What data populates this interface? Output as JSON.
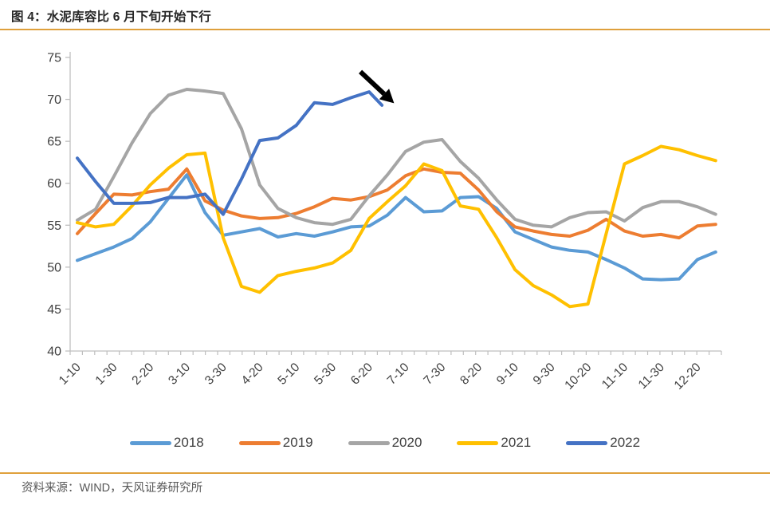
{
  "header": {
    "title": "图 4：水泥库容比 6 月下旬开始下行"
  },
  "footer": {
    "source": "资料来源：WIND，天风证券研究所"
  },
  "colors": {
    "rule": "#DFA03C",
    "axis": "#BFBFBF",
    "tick_label": "#404040",
    "title_text": "#262626",
    "source_text": "#595959",
    "annotation_arrow": "#000000"
  },
  "chart_data": {
    "type": "line",
    "title": "水泥库容比 (%)",
    "x_labels": [
      "1-10",
      "1-30",
      "2-20",
      "3-10",
      "3-30",
      "4-20",
      "5-10",
      "5-30",
      "6-20",
      "7-10",
      "7-30",
      "8-20",
      "9-10",
      "9-30",
      "10-20",
      "11-10",
      "11-30",
      "12-20"
    ],
    "x_step_per_point": 0.5,
    "y_ticks": [
      40,
      45,
      50,
      55,
      60,
      65,
      70,
      75
    ],
    "ylim": [
      40,
      75
    ],
    "grid": false,
    "legend_position": "bottom",
    "series": [
      {
        "name": "2018",
        "color": "#5B9BD5",
        "values": [
          50.8,
          51.6,
          52.4,
          53.4,
          55.4,
          58.2,
          61.0,
          56.5,
          53.8,
          54.2,
          54.6,
          53.6,
          54.0,
          53.7,
          54.2,
          54.8,
          54.9,
          56.2,
          58.3,
          56.6,
          56.7,
          58.3,
          58.4,
          57.0,
          54.2,
          53.3,
          52.4,
          52.0,
          51.8,
          50.9,
          49.9,
          48.6,
          48.5,
          48.6,
          50.9,
          51.8
        ]
      },
      {
        "name": "2019",
        "color": "#ED7D31",
        "values": [
          54.0,
          56.4,
          58.7,
          58.6,
          59.0,
          59.3,
          61.7,
          57.9,
          56.8,
          56.1,
          55.8,
          55.9,
          56.4,
          57.2,
          58.2,
          58.0,
          58.4,
          59.2,
          60.9,
          61.7,
          61.3,
          61.2,
          59.2,
          56.6,
          54.8,
          54.3,
          53.9,
          53.7,
          54.4,
          55.7,
          54.3,
          53.7,
          53.9,
          53.5,
          54.9,
          55.1
        ]
      },
      {
        "name": "2020",
        "color": "#A5A5A5",
        "values": [
          55.6,
          56.9,
          60.8,
          64.8,
          68.3,
          70.5,
          71.2,
          71.0,
          70.7,
          66.5,
          59.8,
          57.0,
          55.9,
          55.3,
          55.1,
          55.7,
          58.5,
          61.0,
          63.8,
          64.9,
          65.2,
          62.6,
          60.6,
          58.0,
          55.7,
          55.0,
          54.8,
          55.9,
          56.5,
          56.6,
          55.5,
          57.1,
          57.8,
          57.8,
          57.2,
          56.3
        ]
      },
      {
        "name": "2021",
        "color": "#FFC000",
        "values": [
          55.3,
          54.8,
          55.1,
          57.3,
          59.8,
          61.8,
          63.4,
          63.6,
          53.5,
          47.7,
          47.0,
          49.0,
          49.5,
          49.9,
          50.5,
          52.0,
          55.8,
          57.8,
          59.7,
          62.3,
          61.5,
          57.3,
          56.9,
          53.5,
          49.7,
          47.8,
          46.7,
          45.3,
          45.6,
          54.0,
          62.3,
          63.3,
          64.4,
          64.0,
          63.3,
          62.7
        ]
      },
      {
        "name": "2022",
        "color": "#4472C4",
        "x": [
          0,
          0.5,
          1,
          1.5,
          2,
          2.5,
          3,
          3.5,
          4,
          4.5,
          5,
          5.5,
          6,
          6.5,
          7,
          7.5,
          8,
          8.35
        ],
        "values": [
          63.0,
          60.2,
          57.6,
          57.6,
          57.7,
          58.3,
          58.3,
          58.7,
          56.3,
          60.5,
          65.1,
          65.4,
          66.9,
          69.6,
          69.4,
          70.2,
          70.9,
          69.3
        ]
      }
    ],
    "annotation": {
      "type": "arrow",
      "description": "black arrow pointing at the falling end of the 2022 line",
      "from": {
        "x": 7.76,
        "y": 73.3
      },
      "to": {
        "x": 8.62,
        "y": 69.8
      }
    }
  },
  "legend": {
    "items": [
      "2018",
      "2019",
      "2020",
      "2021",
      "2022"
    ]
  }
}
